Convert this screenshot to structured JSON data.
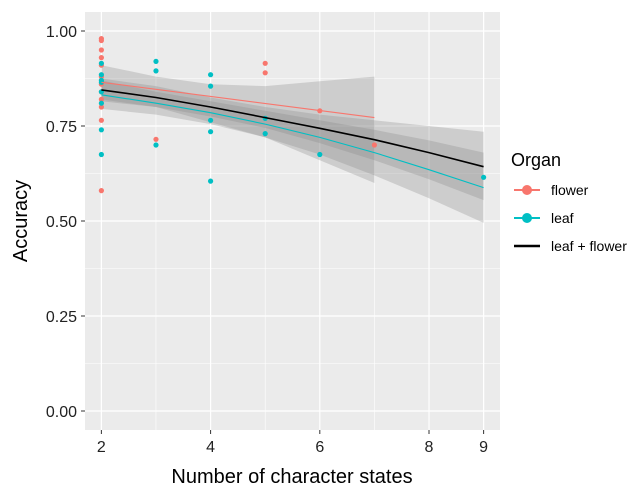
{
  "chart_data": {
    "type": "scatter",
    "xlabel": "Number of character states",
    "ylabel": "Accuracy",
    "xlim": [
      1.7,
      9.3
    ],
    "ylim": [
      -0.05,
      1.05
    ],
    "x_ticks": [
      2,
      4,
      6,
      8,
      9
    ],
    "y_ticks": [
      0.0,
      0.25,
      0.5,
      0.75,
      1.0
    ],
    "y_tick_labels": [
      "0.00",
      "0.25",
      "0.50",
      "0.75",
      "1.00"
    ],
    "grid": true,
    "legend": {
      "title": "Organ",
      "position": "right",
      "entries": [
        {
          "label": "flower",
          "color": "#F8766D",
          "marker": "point-line"
        },
        {
          "label": "leaf",
          "color": "#00BFC4",
          "marker": "point-line"
        },
        {
          "label": "leaf + flower",
          "color": "#000000",
          "marker": "line"
        }
      ]
    },
    "series": [
      {
        "name": "flower",
        "color": "#F8766D",
        "points": [
          {
            "x": 2,
            "y": 0.98
          },
          {
            "x": 2,
            "y": 0.975
          },
          {
            "x": 2,
            "y": 0.95
          },
          {
            "x": 2,
            "y": 0.93
          },
          {
            "x": 2,
            "y": 0.91
          },
          {
            "x": 2,
            "y": 0.88
          },
          {
            "x": 2,
            "y": 0.86
          },
          {
            "x": 2,
            "y": 0.84
          },
          {
            "x": 2,
            "y": 0.82
          },
          {
            "x": 2,
            "y": 0.8
          },
          {
            "x": 2,
            "y": 0.765
          },
          {
            "x": 2,
            "y": 0.58
          },
          {
            "x": 3,
            "y": 0.715
          },
          {
            "x": 5,
            "y": 0.915
          },
          {
            "x": 5,
            "y": 0.89
          },
          {
            "x": 6,
            "y": 0.79
          },
          {
            "x": 7,
            "y": 0.7
          }
        ],
        "fit": {
          "x": [
            2,
            7
          ],
          "y": [
            0.865,
            0.772
          ]
        },
        "band": {
          "x": [
            2,
            3,
            4,
            5,
            6,
            7
          ],
          "upper": [
            0.91,
            0.88,
            0.86,
            0.855,
            0.868,
            0.88
          ],
          "lower": [
            0.82,
            0.8,
            0.76,
            0.72,
            0.66,
            0.6
          ]
        }
      },
      {
        "name": "leaf",
        "color": "#00BFC4",
        "points": [
          {
            "x": 2,
            "y": 0.915
          },
          {
            "x": 2,
            "y": 0.885
          },
          {
            "x": 2,
            "y": 0.87
          },
          {
            "x": 2,
            "y": 0.865
          },
          {
            "x": 2,
            "y": 0.84
          },
          {
            "x": 2,
            "y": 0.81
          },
          {
            "x": 2,
            "y": 0.74
          },
          {
            "x": 2,
            "y": 0.675
          },
          {
            "x": 3,
            "y": 0.92
          },
          {
            "x": 3,
            "y": 0.895
          },
          {
            "x": 3,
            "y": 0.7
          },
          {
            "x": 4,
            "y": 0.885
          },
          {
            "x": 4,
            "y": 0.855
          },
          {
            "x": 4,
            "y": 0.765
          },
          {
            "x": 4,
            "y": 0.735
          },
          {
            "x": 4,
            "y": 0.605
          },
          {
            "x": 5,
            "y": 0.77
          },
          {
            "x": 5,
            "y": 0.73
          },
          {
            "x": 6,
            "y": 0.675
          },
          {
            "x": 9,
            "y": 0.615
          }
        ],
        "fit": {
          "x": [
            2,
            3,
            4,
            5,
            6,
            7,
            8,
            9
          ],
          "y": [
            0.832,
            0.81,
            0.785,
            0.755,
            0.72,
            0.68,
            0.635,
            0.588
          ]
        },
        "band": {
          "x": [
            2,
            3,
            4,
            5,
            6,
            7,
            8,
            9
          ],
          "upper": [
            0.87,
            0.84,
            0.815,
            0.79,
            0.765,
            0.74,
            0.712,
            0.68
          ],
          "lower": [
            0.795,
            0.78,
            0.755,
            0.72,
            0.675,
            0.62,
            0.56,
            0.495
          ]
        }
      },
      {
        "name": "leaf + flower",
        "color": "#000000",
        "fit": {
          "x": [
            2,
            3,
            4,
            5,
            6,
            7,
            8,
            9
          ],
          "y": [
            0.845,
            0.825,
            0.8,
            0.772,
            0.744,
            0.714,
            0.68,
            0.643
          ]
        },
        "band": {
          "x": [
            2,
            3,
            4,
            5,
            6,
            7,
            8,
            9
          ],
          "upper": [
            0.875,
            0.855,
            0.825,
            0.8,
            0.78,
            0.765,
            0.75,
            0.735
          ],
          "lower": [
            0.815,
            0.8,
            0.775,
            0.745,
            0.705,
            0.66,
            0.61,
            0.555
          ]
        }
      }
    ]
  }
}
